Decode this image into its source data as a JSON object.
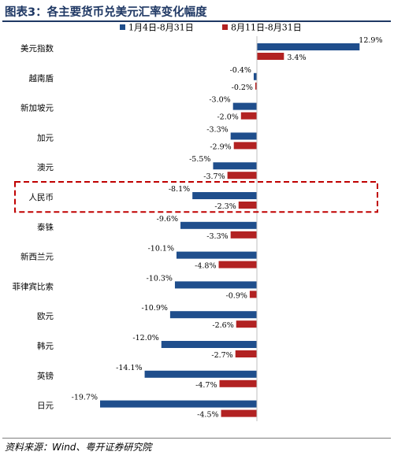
{
  "title": "图表3：各主要货币兑美元汇率变化幅度",
  "source": "资料来源：Wind、粤开证券研究院",
  "colors": {
    "series1": "#1f4e8c",
    "series2": "#b22222",
    "title": "#1f3864",
    "highlight": "#c00000"
  },
  "chart_data": {
    "type": "bar",
    "orientation": "horizontal",
    "categories": [
      "美元指数",
      "越南盾",
      "新加坡元",
      "加元",
      "澳元",
      "人民币",
      "泰铢",
      "新西兰元",
      "菲律宾比索",
      "欧元",
      "韩元",
      "英镑",
      "日元"
    ],
    "series": [
      {
        "name": "1月4日-8月31日",
        "values": [
          12.9,
          -0.4,
          -3.0,
          -3.3,
          -5.5,
          -8.1,
          -9.6,
          -10.1,
          -10.3,
          -10.9,
          -12.0,
          -14.1,
          -19.7
        ]
      },
      {
        "name": "8月11日-8月31日",
        "values": [
          3.4,
          -0.2,
          -2.0,
          -2.9,
          -3.7,
          -2.3,
          -3.3,
          -4.8,
          -0.9,
          -2.6,
          -2.7,
          -4.7,
          -4.5
        ]
      }
    ],
    "value_labels": [
      [
        "12.9%",
        "-0.4%",
        "-3.0%",
        "-3.3%",
        "-5.5%",
        "-8.1%",
        "-9.6%",
        "-10.1%",
        "-10.3%",
        "-10.9%",
        "-12.0%",
        "-14.1%",
        "-19.7%"
      ],
      [
        "3.4%",
        "-0.2%",
        "-2.0%",
        "-2.9%",
        "-3.7%",
        "-2.3%",
        "-3.3%",
        "-4.8%",
        "-0.9%",
        "-2.6%",
        "-2.7%",
        "-4.7%",
        "-4.5%"
      ]
    ],
    "highlighted_category": "人民币",
    "legend_position": "top",
    "grid": false
  }
}
